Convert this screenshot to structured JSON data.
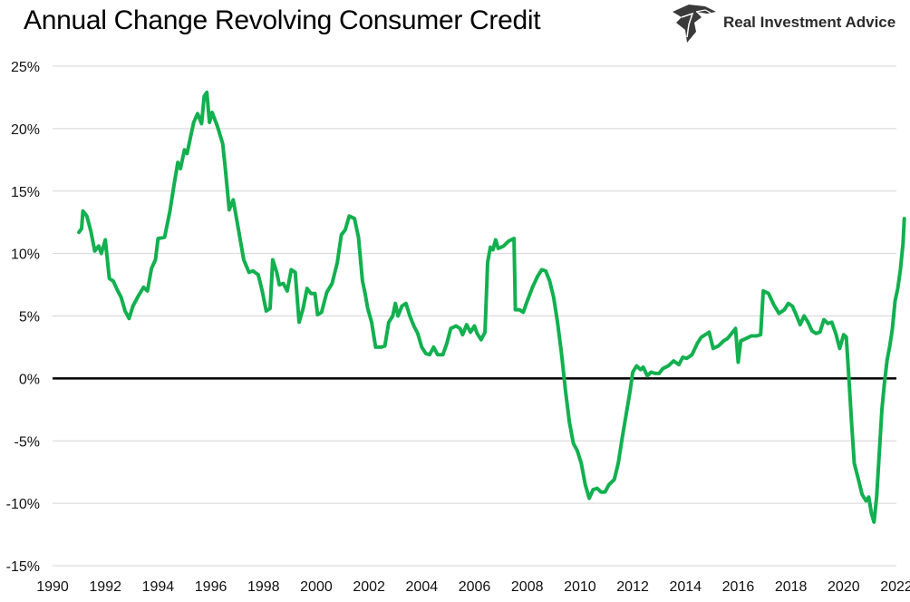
{
  "title": "Annual Change Revolving Consumer Credit",
  "brand": {
    "name": "Real Investment Advice",
    "logo_icon": "eagle-icon"
  },
  "colors": {
    "series": "#12b04f",
    "zero_line": "#000000",
    "grid": "#d4d4d4"
  },
  "chart_data": {
    "type": "line",
    "title": "Annual Change Revolving Consumer Credit",
    "xlabel": "",
    "ylabel": "",
    "xlim": [
      1990,
      2022
    ],
    "ylim": [
      -15,
      25
    ],
    "grid": true,
    "y_ticks": [
      "25%",
      "20%",
      "15%",
      "10%",
      "5%",
      "0%",
      "-5%",
      "-10%",
      "-15%"
    ],
    "y_tick_values": [
      25,
      20,
      15,
      10,
      5,
      0,
      -5,
      -10,
      -15
    ],
    "x_ticks": [
      "1990",
      "1992",
      "1994",
      "1996",
      "1998",
      "2000",
      "2002",
      "2004",
      "2006",
      "2008",
      "2010",
      "2012",
      "2014",
      "2016",
      "2018",
      "2020",
      "2022"
    ],
    "x_tick_values": [
      1990,
      1992,
      1994,
      1996,
      1998,
      2000,
      2002,
      2004,
      2006,
      2008,
      2010,
      2012,
      2014,
      2016,
      2018,
      2020,
      2022
    ],
    "series": [
      {
        "values": [
          [
            1991.0,
            11.7
          ],
          [
            1991.1,
            12.0
          ],
          [
            1991.15,
            13.4
          ],
          [
            1991.3,
            13.0
          ],
          [
            1991.45,
            11.8
          ],
          [
            1991.6,
            10.2
          ],
          [
            1991.75,
            10.6
          ],
          [
            1991.85,
            10.0
          ],
          [
            1992.0,
            11.1
          ],
          [
            1992.15,
            8.0
          ],
          [
            1992.3,
            7.8
          ],
          [
            1992.45,
            7.1
          ],
          [
            1992.6,
            6.5
          ],
          [
            1992.75,
            5.4
          ],
          [
            1992.9,
            4.8
          ],
          [
            1993.05,
            5.8
          ],
          [
            1993.25,
            6.6
          ],
          [
            1993.45,
            7.3
          ],
          [
            1993.6,
            7.0
          ],
          [
            1993.75,
            8.8
          ],
          [
            1993.9,
            9.5
          ],
          [
            1994.0,
            11.2
          ],
          [
            1994.25,
            11.3
          ],
          [
            1994.45,
            13.4
          ],
          [
            1994.6,
            15.4
          ],
          [
            1994.75,
            17.3
          ],
          [
            1994.85,
            16.8
          ],
          [
            1995.0,
            18.3
          ],
          [
            1995.1,
            18.0
          ],
          [
            1995.25,
            19.5
          ],
          [
            1995.35,
            20.5
          ],
          [
            1995.5,
            21.2
          ],
          [
            1995.65,
            20.4
          ],
          [
            1995.75,
            22.6
          ],
          [
            1995.85,
            22.9
          ],
          [
            1995.95,
            20.5
          ],
          [
            1996.05,
            21.3
          ],
          [
            1996.25,
            20.2
          ],
          [
            1996.45,
            18.8
          ],
          [
            1996.55,
            16.8
          ],
          [
            1996.7,
            13.5
          ],
          [
            1996.85,
            14.3
          ],
          [
            1997.0,
            12.5
          ],
          [
            1997.25,
            9.5
          ],
          [
            1997.45,
            8.5
          ],
          [
            1997.6,
            8.6
          ],
          [
            1997.8,
            8.3
          ],
          [
            1997.95,
            7.0
          ],
          [
            1998.1,
            5.4
          ],
          [
            1998.25,
            5.6
          ],
          [
            1998.35,
            9.5
          ],
          [
            1998.5,
            8.5
          ],
          [
            1998.6,
            7.5
          ],
          [
            1998.75,
            7.6
          ],
          [
            1998.9,
            7.0
          ],
          [
            1999.05,
            8.7
          ],
          [
            1999.2,
            8.5
          ],
          [
            1999.35,
            4.5
          ],
          [
            1999.5,
            5.6
          ],
          [
            1999.65,
            7.2
          ],
          [
            1999.8,
            6.8
          ],
          [
            1999.95,
            6.8
          ],
          [
            2000.05,
            5.1
          ],
          [
            2000.2,
            5.3
          ],
          [
            2000.4,
            6.9
          ],
          [
            2000.6,
            7.6
          ],
          [
            2000.8,
            9.3
          ],
          [
            2000.95,
            11.5
          ],
          [
            2001.1,
            11.9
          ],
          [
            2001.25,
            13.0
          ],
          [
            2001.45,
            12.8
          ],
          [
            2001.6,
            11.3
          ],
          [
            2001.75,
            7.8
          ],
          [
            2001.85,
            6.8
          ],
          [
            2001.95,
            5.6
          ],
          [
            2002.1,
            4.5
          ],
          [
            2002.25,
            2.5
          ],
          [
            2002.45,
            2.5
          ],
          [
            2002.6,
            2.6
          ],
          [
            2002.75,
            4.5
          ],
          [
            2002.9,
            5.0
          ],
          [
            2003.0,
            6.0
          ],
          [
            2003.1,
            5.0
          ],
          [
            2003.25,
            5.8
          ],
          [
            2003.4,
            6.0
          ],
          [
            2003.55,
            5.0
          ],
          [
            2003.7,
            4.2
          ],
          [
            2003.85,
            3.6
          ],
          [
            2004.0,
            2.5
          ],
          [
            2004.15,
            2.0
          ],
          [
            2004.3,
            1.9
          ],
          [
            2004.45,
            2.5
          ],
          [
            2004.6,
            1.9
          ],
          [
            2004.8,
            1.9
          ],
          [
            2004.95,
            2.8
          ],
          [
            2005.1,
            4.0
          ],
          [
            2005.3,
            4.2
          ],
          [
            2005.45,
            4.0
          ],
          [
            2005.55,
            3.5
          ],
          [
            2005.7,
            4.3
          ],
          [
            2005.85,
            3.7
          ],
          [
            2006.0,
            4.2
          ],
          [
            2006.1,
            3.6
          ],
          [
            2006.25,
            3.1
          ],
          [
            2006.4,
            3.7
          ],
          [
            2006.5,
            9.3
          ],
          [
            2006.6,
            10.5
          ],
          [
            2006.7,
            10.3
          ],
          [
            2006.8,
            11.1
          ],
          [
            2006.9,
            10.4
          ],
          [
            2007.1,
            10.6
          ],
          [
            2007.3,
            11.0
          ],
          [
            2007.5,
            11.2
          ],
          [
            2007.55,
            5.5
          ],
          [
            2007.7,
            5.5
          ],
          [
            2007.85,
            5.3
          ],
          [
            2008.0,
            6.2
          ],
          [
            2008.2,
            7.3
          ],
          [
            2008.4,
            8.2
          ],
          [
            2008.55,
            8.7
          ],
          [
            2008.7,
            8.6
          ],
          [
            2008.85,
            7.8
          ],
          [
            2009.0,
            6.5
          ],
          [
            2009.15,
            4.5
          ],
          [
            2009.3,
            2.0
          ],
          [
            2009.45,
            -1.0
          ],
          [
            2009.6,
            -3.5
          ],
          [
            2009.75,
            -5.2
          ],
          [
            2009.9,
            -5.8
          ],
          [
            2010.05,
            -6.8
          ],
          [
            2010.2,
            -8.5
          ],
          [
            2010.35,
            -9.6
          ],
          [
            2010.5,
            -8.9
          ],
          [
            2010.65,
            -8.8
          ],
          [
            2010.8,
            -9.1
          ],
          [
            2010.95,
            -9.1
          ],
          [
            2011.1,
            -8.5
          ],
          [
            2011.3,
            -8.1
          ],
          [
            2011.45,
            -6.8
          ],
          [
            2011.6,
            -4.8
          ],
          [
            2011.75,
            -2.9
          ],
          [
            2011.9,
            -1.0
          ],
          [
            2012.0,
            0.5
          ],
          [
            2012.15,
            1.0
          ],
          [
            2012.3,
            0.7
          ],
          [
            2012.4,
            0.9
          ],
          [
            2012.55,
            0.2
          ],
          [
            2012.7,
            0.5
          ],
          [
            2012.85,
            0.4
          ],
          [
            2013.0,
            0.4
          ],
          [
            2013.15,
            0.8
          ],
          [
            2013.35,
            1.0
          ],
          [
            2013.55,
            1.4
          ],
          [
            2013.75,
            1.1
          ],
          [
            2013.9,
            1.7
          ],
          [
            2014.05,
            1.6
          ],
          [
            2014.25,
            1.9
          ],
          [
            2014.45,
            2.8
          ],
          [
            2014.6,
            3.3
          ],
          [
            2014.75,
            3.5
          ],
          [
            2014.9,
            3.7
          ],
          [
            2015.05,
            2.4
          ],
          [
            2015.25,
            2.6
          ],
          [
            2015.45,
            3.0
          ],
          [
            2015.6,
            3.2
          ],
          [
            2015.75,
            3.6
          ],
          [
            2015.9,
            4.0
          ],
          [
            2016.0,
            1.3
          ],
          [
            2016.1,
            3.0
          ],
          [
            2016.3,
            3.2
          ],
          [
            2016.5,
            3.4
          ],
          [
            2016.7,
            3.4
          ],
          [
            2016.85,
            3.5
          ],
          [
            2016.95,
            7.0
          ],
          [
            2017.15,
            6.8
          ],
          [
            2017.35,
            5.9
          ],
          [
            2017.55,
            5.2
          ],
          [
            2017.75,
            5.5
          ],
          [
            2017.9,
            6.0
          ],
          [
            2018.05,
            5.8
          ],
          [
            2018.2,
            5.1
          ],
          [
            2018.35,
            4.3
          ],
          [
            2018.5,
            5.0
          ],
          [
            2018.65,
            4.5
          ],
          [
            2018.8,
            3.8
          ],
          [
            2018.95,
            3.6
          ],
          [
            2019.1,
            3.7
          ],
          [
            2019.25,
            4.7
          ],
          [
            2019.4,
            4.4
          ],
          [
            2019.55,
            4.5
          ],
          [
            2019.7,
            3.6
          ],
          [
            2019.85,
            2.4
          ],
          [
            2020.0,
            3.5
          ],
          [
            2020.1,
            3.3
          ],
          [
            2020.2,
            0.0
          ],
          [
            2020.3,
            -3.5
          ],
          [
            2020.4,
            -6.8
          ],
          [
            2020.55,
            -8.0
          ],
          [
            2020.7,
            -9.3
          ],
          [
            2020.85,
            -9.8
          ],
          [
            2020.95,
            -9.5
          ],
          [
            2021.05,
            -10.8
          ],
          [
            2021.15,
            -11.5
          ],
          [
            2021.25,
            -9.5
          ],
          [
            2021.35,
            -6.0
          ],
          [
            2021.45,
            -2.5
          ],
          [
            2021.55,
            -0.3
          ],
          [
            2021.65,
            1.5
          ],
          [
            2021.75,
            2.6
          ],
          [
            2021.85,
            4.0
          ],
          [
            2021.95,
            6.2
          ],
          [
            2022.05,
            7.2
          ],
          [
            2022.15,
            8.7
          ],
          [
            2022.25,
            10.8
          ],
          [
            2022.3,
            12.8
          ]
        ]
      }
    ]
  }
}
